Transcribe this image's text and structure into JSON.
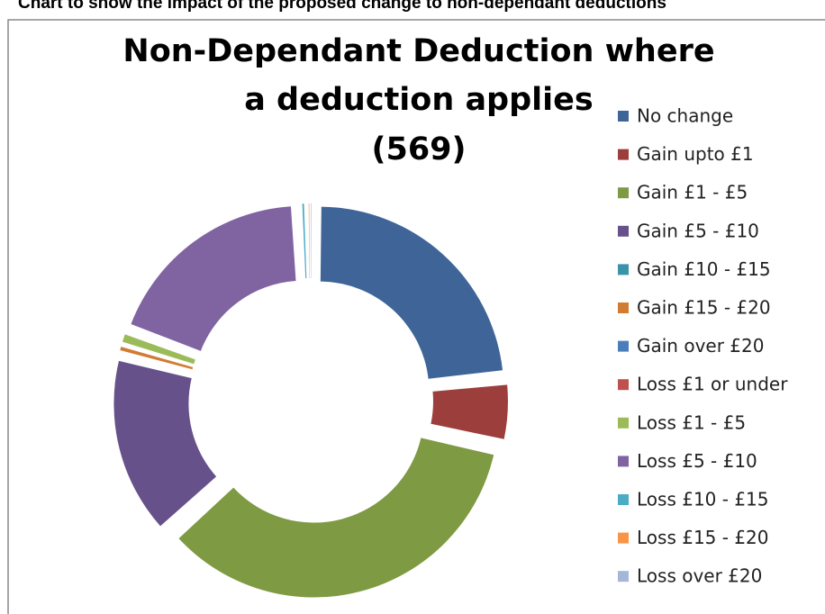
{
  "page_heading": "Chart to show the impact of the proposed change to non-dependant deductions",
  "chart_data": {
    "type": "donut",
    "title": [
      "Non-Dependant Deduction where",
      "a deduction applies",
      "(569)"
    ],
    "categories": [
      "No change",
      "Gain upto £1",
      "Gain £1 - £5",
      "Gain £5 - £10",
      "Gain £10 - £15",
      "Gain £15 - £20",
      "Gain over £20",
      "Loss £1 or under",
      "Loss £1 - £5",
      "Loss £5 - £10",
      "Loss £10 - £15",
      "Loss £15 - £20",
      "Loss over £20"
    ],
    "values": [
      133,
      29,
      198,
      89,
      0,
      4,
      0,
      0,
      6,
      105,
      3,
      1,
      1
    ],
    "colors": [
      "#3f6598",
      "#9c3f3c",
      "#7e9a43",
      "#66518a",
      "#3a93a8",
      "#d07d33",
      "#4a7ebb",
      "#c0504d",
      "#9bbb59",
      "#8064a2",
      "#4bacc6",
      "#f79646",
      "#a5b6d8"
    ],
    "legend": "right"
  }
}
